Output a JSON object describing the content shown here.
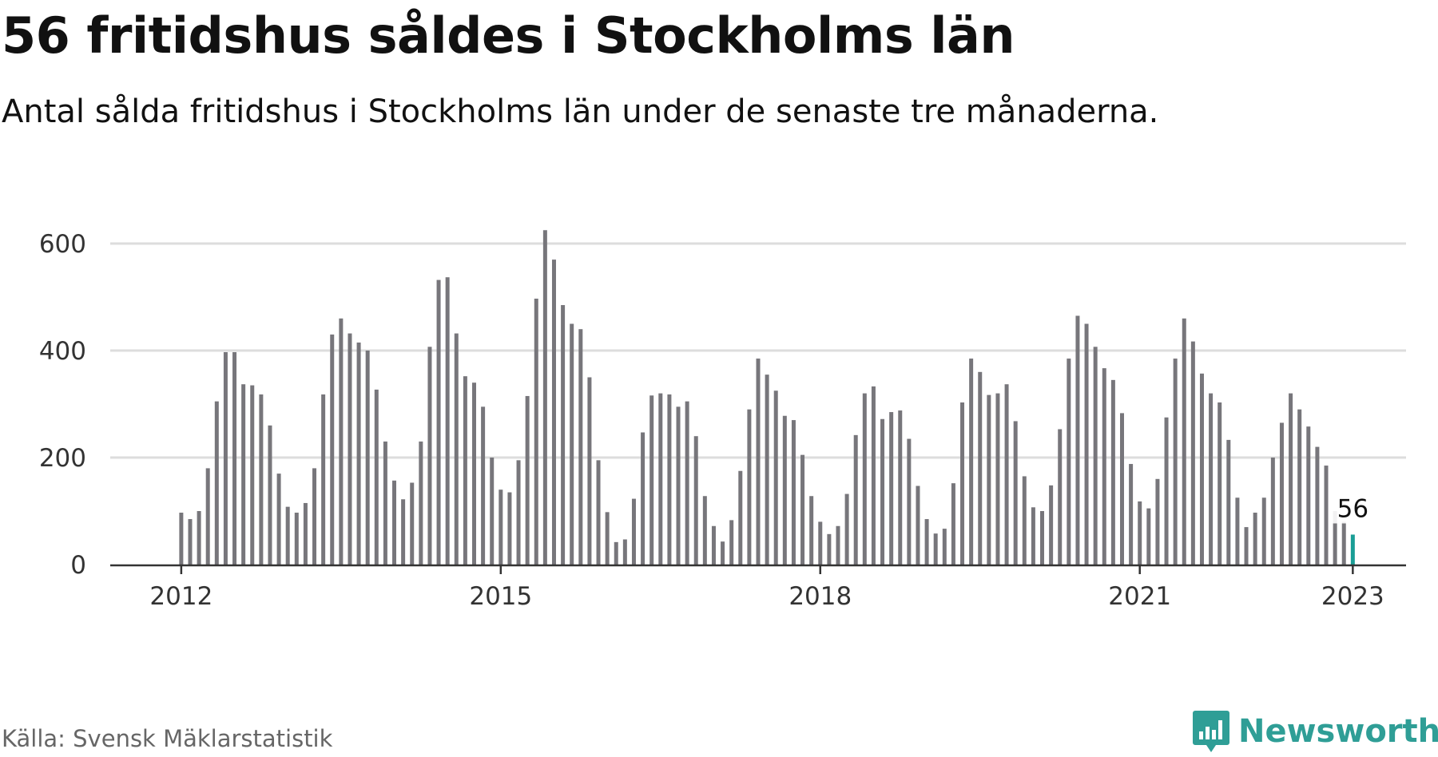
{
  "header": {
    "title": "56 fritidshus såldes i Stockholms län",
    "subtitle": "Antal sålda fritidshus i Stockholms län under de senaste tre månaderna."
  },
  "footer": {
    "source": "Källa: Svensk Mäklarstatistik",
    "logo_text": "Newsworthy",
    "logo_icon": "newsworthy-bar-chart-icon"
  },
  "colors": {
    "bar": "#77767b",
    "highlight": "#1a9e96",
    "grid": "#dddddd",
    "axis": "#333333",
    "brand": "#2f9e96"
  },
  "chart_data": {
    "type": "bar",
    "title": "56 fritidshus såldes i Stockholms län",
    "subtitle": "Antal sålda fritidshus i Stockholms län under de senaste tre månaderna.",
    "xlabel": "",
    "ylabel": "",
    "x_start": "2012-01",
    "x_tick_labels": [
      "2012",
      "2015",
      "2018",
      "2021",
      "2023"
    ],
    "x_ticks": [
      "2012-01",
      "2015-01",
      "2018-01",
      "2021-01",
      "2023-01"
    ],
    "x_range": [
      "2011-05",
      "2023-07"
    ],
    "y_ticks": [
      0,
      200,
      400,
      600
    ],
    "ylim": [
      0,
      650
    ],
    "grid": true,
    "values": [
      97,
      85,
      100,
      180,
      305,
      397,
      397,
      337,
      335,
      318,
      260,
      170,
      108,
      97,
      115,
      180,
      318,
      430,
      460,
      432,
      415,
      400,
      327,
      230,
      157,
      122,
      153,
      230,
      407,
      532,
      537,
      432,
      352,
      340,
      295,
      200,
      140,
      135,
      195,
      315,
      497,
      625,
      570,
      485,
      450,
      440,
      350,
      195,
      98,
      42,
      47,
      123,
      247,
      316,
      320,
      318,
      295,
      305,
      240,
      128,
      72,
      43,
      83,
      175,
      290,
      385,
      355,
      325,
      278,
      270,
      205,
      128,
      80,
      57,
      72,
      132,
      242,
      320,
      333,
      272,
      285,
      288,
      235,
      147,
      85,
      58,
      67,
      152,
      303,
      385,
      360,
      317,
      320,
      337,
      268,
      165,
      107,
      100,
      148,
      253,
      385,
      465,
      450,
      407,
      367,
      345,
      283,
      188,
      118,
      105,
      160,
      275,
      385,
      460,
      417,
      357,
      320,
      303,
      233,
      125,
      70,
      97,
      125,
      200,
      265,
      320,
      290,
      258,
      220,
      185,
      100,
      80,
      56
    ],
    "highlight_last": true,
    "end_label": "56"
  }
}
